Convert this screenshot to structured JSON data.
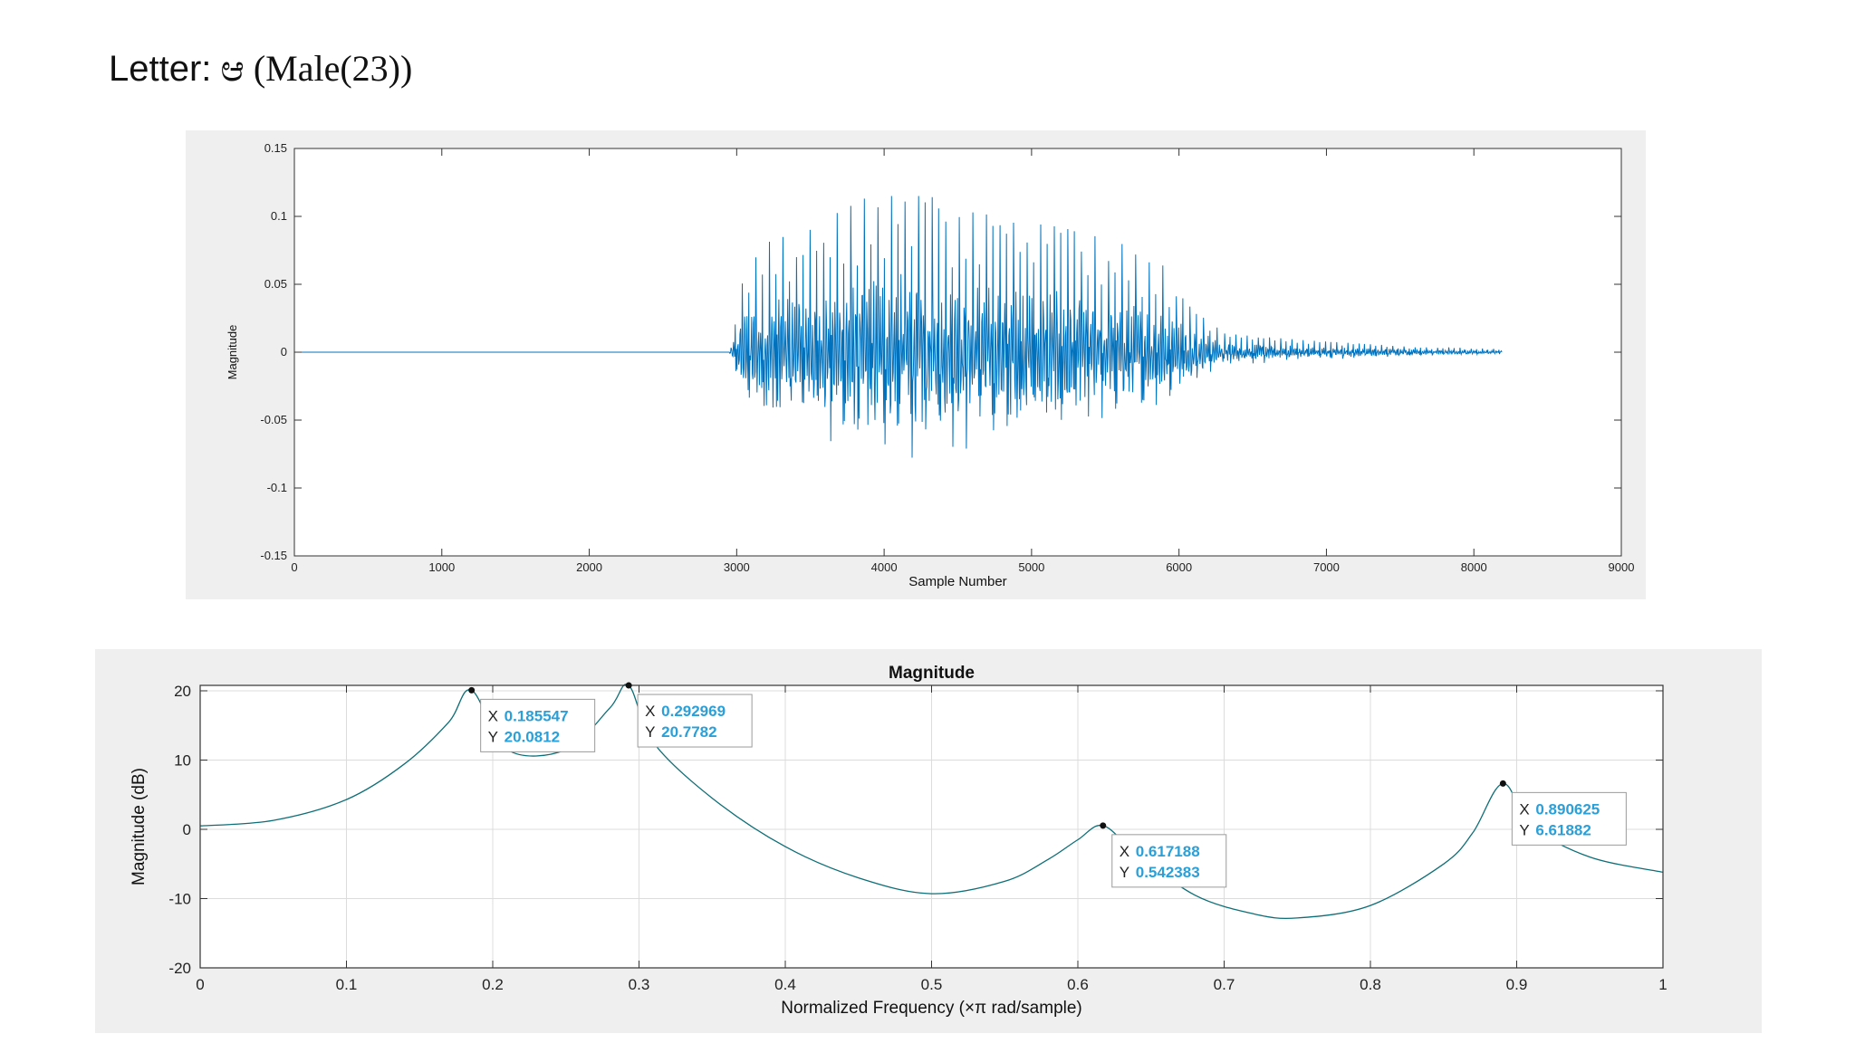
{
  "page": {
    "title_label": "Letter:",
    "title_glyph": "ಆ",
    "title_speaker": "(Male(23))"
  },
  "chart_data": [
    {
      "type": "line",
      "title": "",
      "xlabel": "Sample Number",
      "ylabel": "Magnitude",
      "xlim": [
        0,
        9000
      ],
      "ylim": [
        -0.15,
        0.15
      ],
      "xticks": [
        "0",
        "1000",
        "2000",
        "3000",
        "4000",
        "5000",
        "6000",
        "7000",
        "8000",
        "9000"
      ],
      "yticks": [
        "-0.15",
        "-0.1",
        "-0.05",
        "0",
        "0.05",
        "0.1",
        "0.15"
      ],
      "grid": false,
      "line_color": "#0072bd",
      "series": [
        {
          "signal_start": 2950,
          "signal_end": 8192,
          "envelope": [
            [
              2950,
              0.0
            ],
            [
              3050,
              0.05
            ],
            [
              3200,
              0.07
            ],
            [
              3500,
              0.08
            ],
            [
              3900,
              0.1
            ],
            [
              4300,
              0.1
            ],
            [
              4800,
              0.085
            ],
            [
              5200,
              0.08
            ],
            [
              5600,
              0.07
            ],
            [
              5900,
              0.055
            ],
            [
              6100,
              0.03
            ],
            [
              6300,
              0.012
            ],
            [
              6800,
              0.008
            ],
            [
              7500,
              0.004
            ],
            [
              8192,
              0.002
            ]
          ]
        }
      ]
    },
    {
      "type": "line",
      "title": "Magnitude",
      "xlabel": "Normalized Frequency  (×π rad/sample)",
      "ylabel": "Magnitude (dB)",
      "xlim": [
        0,
        1
      ],
      "ylim": [
        -20,
        21
      ],
      "xticks": [
        "0",
        "0.1",
        "0.2",
        "0.3",
        "0.4",
        "0.5",
        "0.6",
        "0.7",
        "0.8",
        "0.9",
        "1"
      ],
      "yticks": [
        "-20",
        "-10",
        "0",
        "10",
        "20"
      ],
      "grid": true,
      "line_color": "#0d6e77",
      "series": [
        {
          "x": [
            0,
            0.05,
            0.1,
            0.14,
            0.17,
            0.185547,
            0.21,
            0.25,
            0.28,
            0.292969,
            0.31,
            0.35,
            0.4,
            0.45,
            0.5,
            0.55,
            0.58,
            0.6,
            0.617188,
            0.64,
            0.68,
            0.72,
            0.75,
            0.8,
            0.85,
            0.87,
            0.890625,
            0.91,
            0.95,
            1.0
          ],
          "y": [
            0.5,
            1.3,
            4.3,
            9.5,
            15.5,
            20.08,
            11.5,
            11.5,
            17.5,
            20.78,
            12.5,
            4.5,
            -2.5,
            -7.0,
            -9.3,
            -7.5,
            -4.3,
            -1.5,
            0.54,
            -3.5,
            -9.5,
            -12.2,
            -12.8,
            -11.0,
            -5.0,
            -0.5,
            6.62,
            0.5,
            -4.0,
            -6.2
          ]
        }
      ],
      "datatips": [
        {
          "x_label": "X",
          "x_value": "0.185547",
          "y_label": "Y",
          "y_value": "20.0812",
          "x": 0.185547,
          "y": 20.0812
        },
        {
          "x_label": "X",
          "x_value": "0.292969",
          "y_label": "Y",
          "y_value": "20.7782",
          "x": 0.292969,
          "y": 20.7782
        },
        {
          "x_label": "X",
          "x_value": "0.617188",
          "y_label": "Y",
          "y_value": "0.542383",
          "x": 0.617188,
          "y": 0.542383
        },
        {
          "x_label": "X",
          "x_value": "0.890625",
          "y_label": "Y",
          "y_value": "6.61882",
          "x": 0.890625,
          "y": 6.61882
        }
      ]
    }
  ]
}
